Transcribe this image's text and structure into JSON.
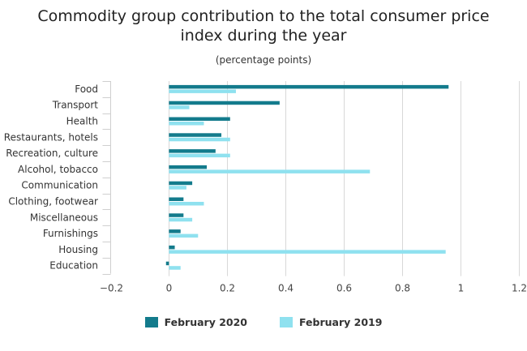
{
  "chart_data": {
    "type": "bar",
    "orientation": "horizontal",
    "title": "Commodity group contribution to the total consumer price index during the year",
    "title_lines": [
      "Commodity group contribution to the total consumer price",
      "index during the year"
    ],
    "subtitle": "(percentage points)",
    "xlabel": "",
    "ylabel": "",
    "xlim": [
      -0.2,
      1.2
    ],
    "xticks": [
      -0.2,
      0,
      0.2,
      0.4,
      0.6,
      0.8,
      1,
      1.2
    ],
    "xtick_labels": [
      "−0.2",
      "0",
      "0.2",
      "0.4",
      "0.6",
      "0.8",
      "1",
      "1.2"
    ],
    "grid": true,
    "legend_position": "bottom",
    "categories": [
      "Food",
      "Transport",
      "Health",
      "Restaurants, hotels",
      "Recreation, culture",
      "Alcohol, tobacco",
      "Communication",
      "Clothing, footwear",
      "Miscellaneous",
      "Furnishings",
      "Housing",
      "Education"
    ],
    "series": [
      {
        "name": "February 2020",
        "color": "#137b8c",
        "values": [
          0.96,
          0.38,
          0.21,
          0.18,
          0.16,
          0.13,
          0.08,
          0.05,
          0.05,
          0.04,
          0.02,
          -0.01
        ]
      },
      {
        "name": "February 2019",
        "color": "#8fe1ef",
        "values": [
          0.23,
          0.07,
          0.12,
          0.21,
          0.21,
          0.69,
          0.06,
          0.12,
          0.08,
          0.1,
          0.95,
          0.04
        ]
      }
    ]
  }
}
